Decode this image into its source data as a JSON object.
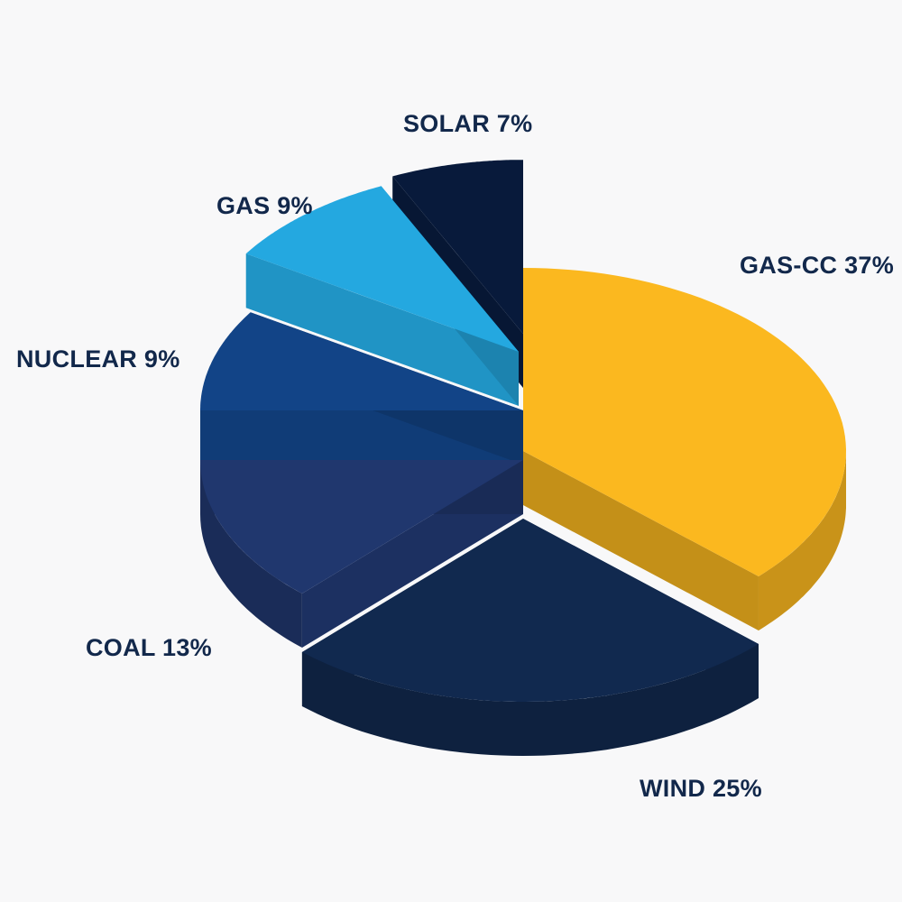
{
  "chart_data": {
    "type": "pie",
    "style": "3d-exploded",
    "title": "",
    "unit": "%",
    "slices": [
      {
        "name": "GAS-CC",
        "value": 37,
        "label": "GAS-CC 37%",
        "color": "#fbb81f"
      },
      {
        "name": "WIND",
        "value": 25,
        "label": "WIND 25%",
        "color": "#11294f"
      },
      {
        "name": "COAL",
        "value": 13,
        "label": "COAL 13%",
        "color": "#20376e"
      },
      {
        "name": "NUCLEAR",
        "value": 9,
        "label": "NUCLEAR 9%",
        "color": "#124487"
      },
      {
        "name": "GAS",
        "value": 9,
        "label": "GAS 9%",
        "color": "#24a8e0"
      },
      {
        "name": "SOLAR",
        "value": 7,
        "label": "SOLAR 7%",
        "color": "#081a3b"
      }
    ],
    "label_color": "#12284b",
    "background": "#f8f8f9"
  }
}
